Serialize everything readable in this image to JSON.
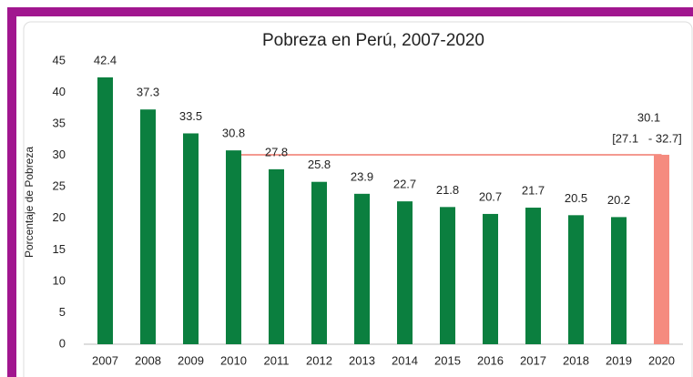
{
  "chart_data": {
    "type": "bar",
    "title": "Pobreza en Perú, 2007-2020",
    "y_label": "Porcentaje de Pobreza",
    "categories": [
      "2007",
      "2008",
      "2009",
      "2010",
      "2011",
      "2012",
      "2013",
      "2014",
      "2015",
      "2016",
      "2017",
      "2018",
      "2019",
      "2020"
    ],
    "values": [
      42.4,
      37.3,
      33.5,
      30.8,
      27.8,
      25.8,
      23.9,
      22.7,
      21.8,
      20.7,
      21.7,
      20.5,
      20.2,
      30.1
    ],
    "colors": [
      "#0b7f3f",
      "#0b7f3f",
      "#0b7f3f",
      "#0b7f3f",
      "#0b7f3f",
      "#0b7f3f",
      "#0b7f3f",
      "#0b7f3f",
      "#0b7f3f",
      "#0b7f3f",
      "#0b7f3f",
      "#0b7f3f",
      "#0b7f3f",
      "#f58b7f"
    ],
    "annotation": "[27.1   - 32.7]",
    "reference_line_color": "#f0786c",
    "ylim": [
      0,
      45
    ],
    "yticks": [
      0,
      5,
      10,
      15,
      20,
      25,
      30,
      35,
      40,
      45
    ]
  }
}
